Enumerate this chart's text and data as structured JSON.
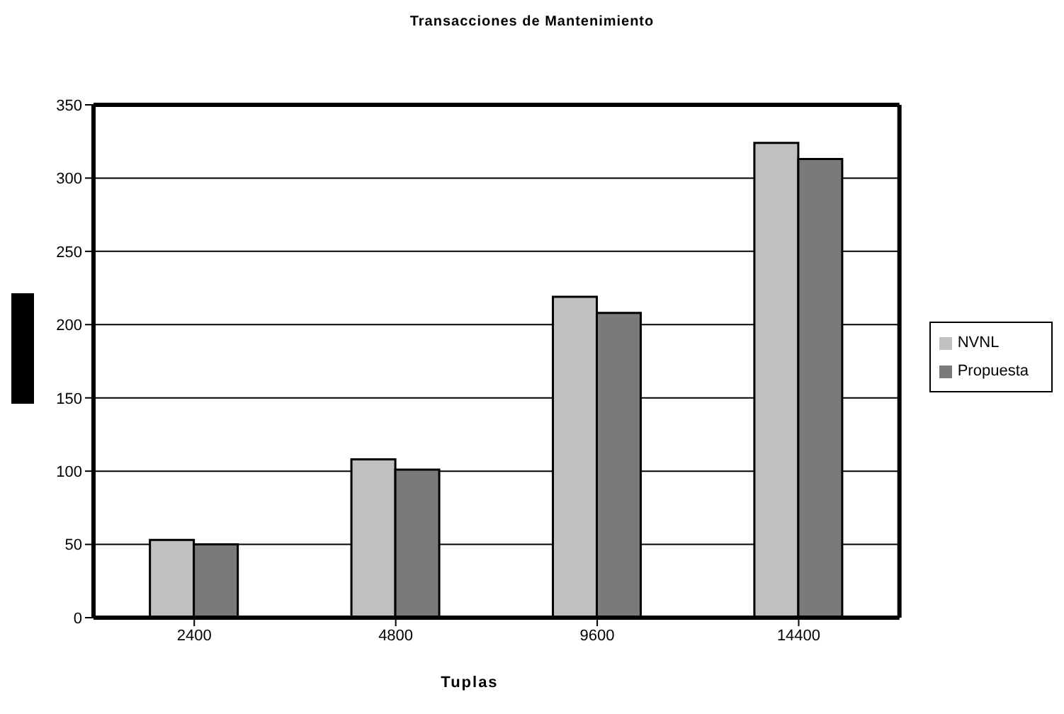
{
  "chart_data": {
    "type": "bar",
    "title": "Transacciones de Mantenimiento",
    "xlabel": "Tuplas",
    "categories": [
      "2400",
      "4800",
      "9600",
      "14400"
    ],
    "series": [
      {
        "name": "NVNL",
        "color": "#c0c0c0",
        "values": [
          53,
          108,
          219,
          324
        ]
      },
      {
        "name": "Propuesta",
        "color": "#7a7a7a",
        "values": [
          50,
          101,
          208,
          313
        ]
      }
    ],
    "ylim": [
      0,
      350
    ],
    "yticks": [
      0,
      50,
      100,
      150,
      200,
      250,
      300,
      350
    ],
    "grid": "y",
    "legend": "right"
  }
}
